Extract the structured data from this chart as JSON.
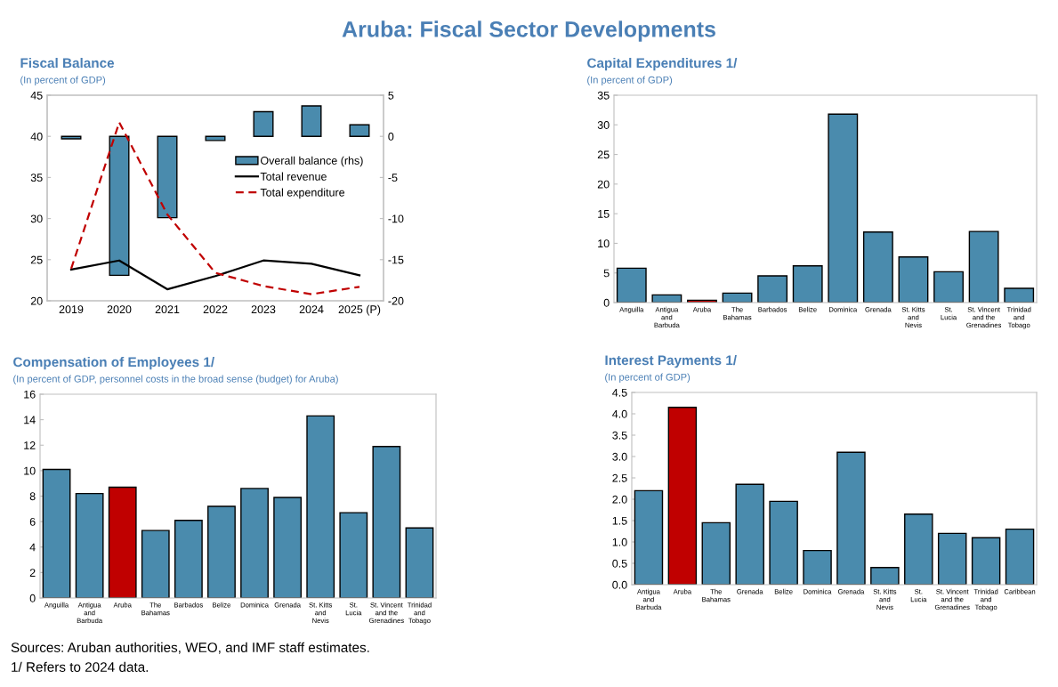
{
  "chart_data": [
    {
      "type": "other",
      "title": "Aruba: Fiscal Sector Developments",
      "annotations": [
        "Sources: Aruban authorities, WEO, and IMF staff estimates.",
        "1/ Refers to 2024 data."
      ]
    },
    {
      "type": "bar",
      "title": "Fiscal Balance",
      "subtitle": "(In percent of GDP)",
      "categories": [
        "2019",
        "2020",
        "2021",
        "2022",
        "2023",
        "2024",
        "2025 (P)"
      ],
      "ylim": [
        20,
        45
      ],
      "yticks": [
        20,
        25,
        30,
        35,
        40,
        45
      ],
      "y2lim": [
        -20,
        5
      ],
      "y2ticks": [
        -20,
        -15,
        -10,
        -5,
        0,
        5
      ],
      "legend": "right",
      "series": [
        {
          "name": "Overall balance (rhs)",
          "type": "bar",
          "axis": "y2",
          "color": "#4a8bad",
          "values": [
            -0.3,
            -16.9,
            -9.9,
            -0.5,
            3.0,
            3.7,
            1.4
          ]
        },
        {
          "name": "Total revenue",
          "type": "line",
          "color": "#000000",
          "line_style": "solid",
          "values": [
            23.8,
            24.9,
            21.4,
            23.0,
            24.9,
            24.5,
            23.1
          ]
        },
        {
          "name": "Total expenditure",
          "type": "line",
          "color": "#c00000",
          "line_style": "dashed",
          "values": [
            23.9,
            41.7,
            30.5,
            23.4,
            21.8,
            20.8,
            21.7
          ]
        }
      ]
    },
    {
      "type": "bar",
      "title": "Capital Expenditures 1/",
      "subtitle": "(In percent of GDP)",
      "categories": [
        "Anguilla",
        "Antigua\nand\nBarbuda",
        "Aruba",
        "The\nBahamas",
        "Barbados",
        "Belize",
        "Dominica",
        "Grenada",
        "St. Kitts\nand\nNevis",
        "St.\nLucia",
        "St. Vincent\nand the\nGrenadines",
        "Trinidad\nand\nTobago"
      ],
      "ylim": [
        0,
        35
      ],
      "yticks": [
        0,
        5,
        10,
        15,
        20,
        25,
        30,
        35
      ],
      "values": [
        5.8,
        1.3,
        0.4,
        1.6,
        4.5,
        6.2,
        31.8,
        11.9,
        7.7,
        5.2,
        12.0,
        2.4
      ],
      "colors": [
        "#4a8bad",
        "#4a8bad",
        "#c00000",
        "#4a8bad",
        "#4a8bad",
        "#4a8bad",
        "#4a8bad",
        "#4a8bad",
        "#4a8bad",
        "#4a8bad",
        "#4a8bad",
        "#4a8bad"
      ]
    },
    {
      "type": "bar",
      "title": "Compensation of Employees 1/",
      "subtitle": "(In percent of GDP, personnel costs in the broad sense (budget) for Aruba)",
      "categories": [
        "Anguilla",
        "Antigua\nand\nBarbuda",
        "Aruba",
        "The\nBahamas",
        "Barbados",
        "Belize",
        "Dominica",
        "Grenada",
        "St. Kitts\nand\nNevis",
        "St.\nLucia",
        "St. Vincent\nand the\nGrenadines",
        "Trinidad\nand\nTobago"
      ],
      "ylim": [
        0,
        16
      ],
      "yticks": [
        0,
        2,
        4,
        6,
        8,
        10,
        12,
        14,
        16
      ],
      "values": [
        10.1,
        8.2,
        8.7,
        5.3,
        6.1,
        7.2,
        8.6,
        7.9,
        14.3,
        6.7,
        11.9,
        5.5
      ],
      "colors": [
        "#4a8bad",
        "#4a8bad",
        "#c00000",
        "#4a8bad",
        "#4a8bad",
        "#4a8bad",
        "#4a8bad",
        "#4a8bad",
        "#4a8bad",
        "#4a8bad",
        "#4a8bad",
        "#4a8bad"
      ]
    },
    {
      "type": "bar",
      "title": "Interest Payments 1/",
      "subtitle": "(In percent of GDP)",
      "categories": [
        "Antigua\nand\nBarbuda",
        "Aruba",
        "The\nBahamas",
        "Grenada",
        "Belize",
        "Dominica",
        "Grenada",
        "St. Kitts\nand\nNevis",
        "St.\nLucia",
        "St. Vincent\nand the\nGrenadines",
        "Trinidad\nand\nTobago",
        "Caribbean"
      ],
      "ylim": [
        0,
        4.5
      ],
      "yticks": [
        {
          "value": 0,
          "label": "0.0"
        },
        {
          "value": 0.5,
          "label": "0.5"
        },
        {
          "value": 1,
          "label": "1.0"
        },
        {
          "value": 1.5,
          "label": "1.5"
        },
        {
          "value": 2,
          "label": "2.0"
        },
        {
          "value": 2.5,
          "label": "2.5"
        },
        {
          "value": 3,
          "label": "3.0"
        },
        {
          "value": 3.5,
          "label": "3.5"
        },
        {
          "value": 4,
          "label": "4.0"
        },
        {
          "value": 4.5,
          "label": "4.5"
        }
      ],
      "values": [
        2.2,
        4.15,
        1.45,
        2.35,
        1.95,
        0.8,
        3.1,
        0.4,
        1.65,
        1.2,
        1.1,
        1.3
      ],
      "colors": [
        "#4a8bad",
        "#c00000",
        "#4a8bad",
        "#4a8bad",
        "#4a8bad",
        "#4a8bad",
        "#4a8bad",
        "#4a8bad",
        "#4a8bad",
        "#4a8bad",
        "#4a8bad",
        "#4a8bad"
      ]
    }
  ]
}
